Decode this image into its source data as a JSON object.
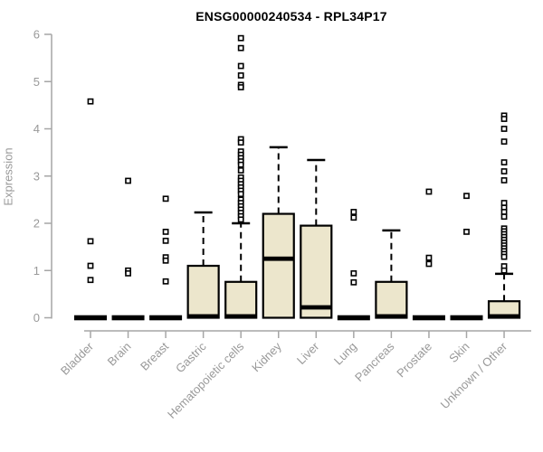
{
  "chart_data": {
    "type": "boxplot",
    "title": "ENSG00000240534 - RPL34P17",
    "ylabel": "Expression",
    "xlabel": "",
    "ylim": [
      0,
      6
    ],
    "yticks": [
      0,
      1,
      2,
      3,
      4,
      5,
      6
    ],
    "grid": "off",
    "legend": "none",
    "categories": [
      "Bladder",
      "Brain",
      "Breast",
      "Gastric",
      "Hematopoietic cells",
      "Kidney",
      "Liver",
      "Lung",
      "Pancreas",
      "Prostate",
      "Skin",
      "Unknown / Other"
    ],
    "boxes": [
      {
        "category": "Bladder",
        "q1": 0,
        "median": 0,
        "q3": 0,
        "whisker_low": 0,
        "whisker_high": 0,
        "outliers": [
          4.58,
          1.62,
          1.1,
          0.8
        ]
      },
      {
        "category": "Brain",
        "q1": 0,
        "median": 0,
        "q3": 0,
        "whisker_low": 0,
        "whisker_high": 0,
        "outliers": [
          2.9,
          1.0,
          0.94
        ]
      },
      {
        "category": "Breast",
        "q1": 0,
        "median": 0,
        "q3": 0,
        "whisker_low": 0,
        "whisker_high": 0,
        "outliers": [
          2.52,
          1.82,
          1.63,
          1.28,
          1.21,
          0.77
        ]
      },
      {
        "category": "Gastric",
        "q1": 0,
        "median": 0.03,
        "q3": 1.1,
        "whisker_low": 0,
        "whisker_high": 2.23,
        "outliers": []
      },
      {
        "category": "Hematopoietic cells",
        "q1": 0,
        "median": 0.03,
        "q3": 0.76,
        "whisker_low": 0,
        "whisker_high": 2.0,
        "outliers": [
          5.92,
          5.71,
          5.33,
          5.13,
          4.93,
          4.88,
          3.78,
          3.71,
          3.52,
          3.45,
          3.38,
          3.31,
          3.24,
          3.12,
          2.97,
          2.9,
          2.83,
          2.76,
          2.69,
          2.62,
          2.5,
          2.43,
          2.36,
          2.29,
          2.22,
          2.15,
          2.08
        ]
      },
      {
        "category": "Kidney",
        "q1": 0,
        "median": 1.25,
        "q3": 2.2,
        "whisker_low": 0,
        "whisker_high": 3.61,
        "outliers": []
      },
      {
        "category": "Liver",
        "q1": 0,
        "median": 0.22,
        "q3": 1.95,
        "whisker_low": 0,
        "whisker_high": 3.34,
        "outliers": []
      },
      {
        "category": "Lung",
        "q1": 0,
        "median": 0,
        "q3": 0,
        "whisker_low": 0,
        "whisker_high": 0,
        "outliers": [
          2.24,
          2.12,
          0.94,
          0.75
        ]
      },
      {
        "category": "Pancreas",
        "q1": 0,
        "median": 0.03,
        "q3": 0.76,
        "whisker_low": 0,
        "whisker_high": 1.85,
        "outliers": []
      },
      {
        "category": "Prostate",
        "q1": 0,
        "median": 0,
        "q3": 0,
        "whisker_low": 0,
        "whisker_high": 0,
        "outliers": [
          2.67,
          1.27,
          1.14
        ]
      },
      {
        "category": "Skin",
        "q1": 0,
        "median": 0,
        "q3": 0,
        "whisker_low": 0,
        "whisker_high": 0,
        "outliers": [
          2.58,
          1.82
        ]
      },
      {
        "category": "Unknown / Other",
        "q1": 0,
        "median": 0.03,
        "q3": 0.35,
        "whisker_low": 0,
        "whisker_high": 0.93,
        "outliers": [
          4.28,
          4.21,
          4.0,
          3.73,
          3.29,
          3.1,
          2.91,
          2.43,
          2.33,
          2.24,
          2.14,
          1.89,
          1.83,
          1.77,
          1.71,
          1.65,
          1.59,
          1.53,
          1.47,
          1.41,
          1.35,
          1.29,
          1.09,
          1.0
        ]
      }
    ],
    "colors": {
      "box_fill": "#ece6cc",
      "box_stroke": "#000000",
      "median": "#000000",
      "outlier_fill": "#ffffff",
      "outlier_stroke": "#000000",
      "axis_line": "#a6a6a6",
      "tick_text": "#999999",
      "title_text": "#000000"
    }
  }
}
